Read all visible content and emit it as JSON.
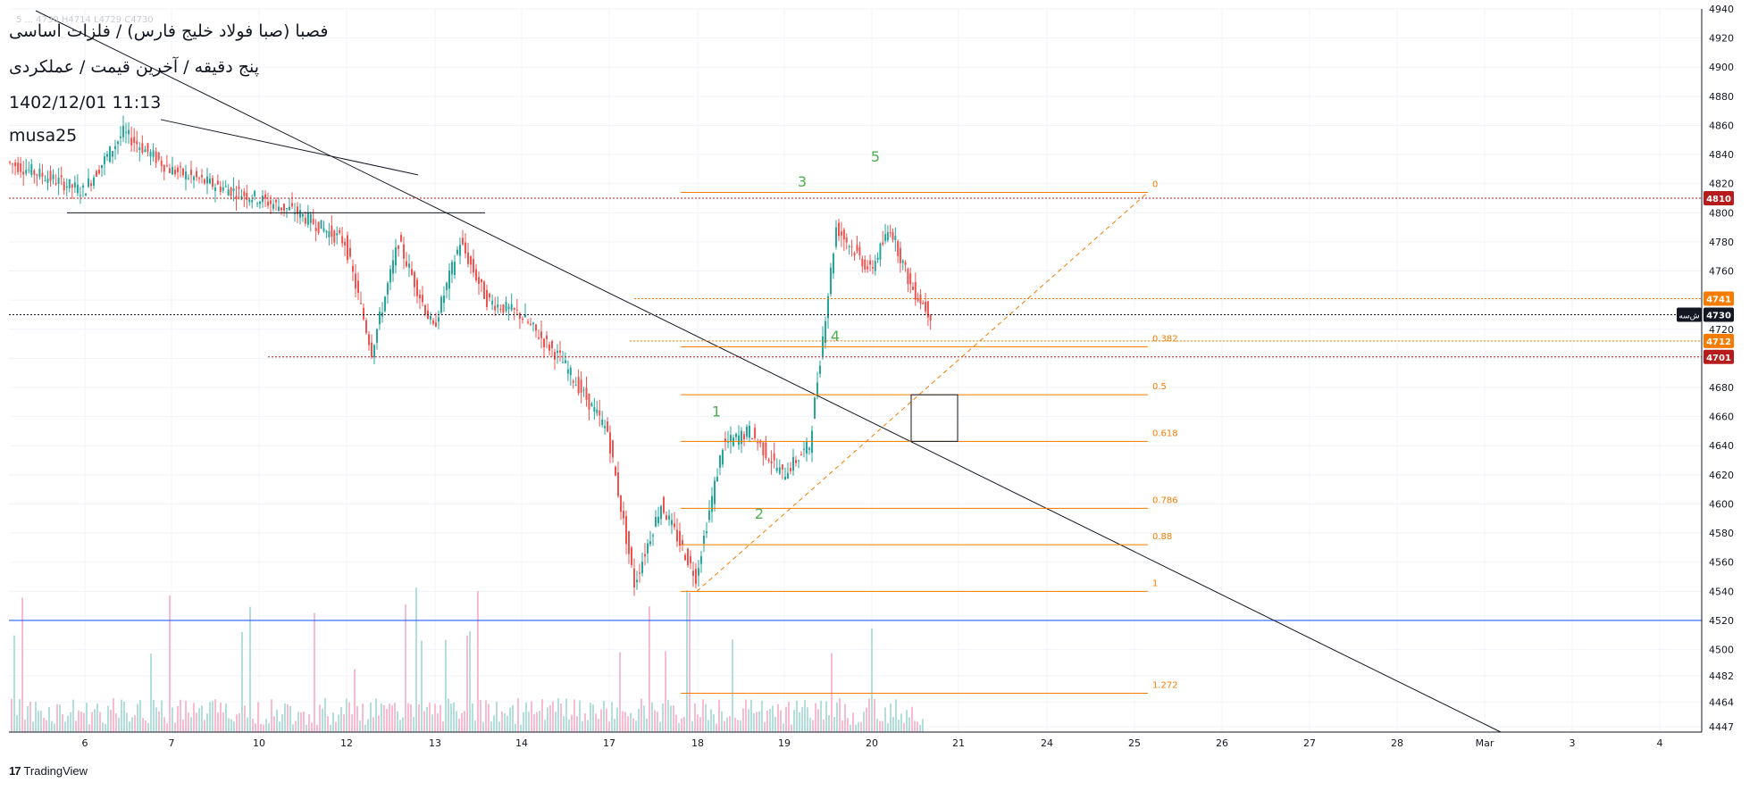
{
  "header": {
    "title": "فصبا (صبا فولاد خلیج فارس) / فلزات اساسی",
    "subtitle": "پنج دقیقه / آخرین قیمت / عملکردی",
    "datetime": "1402/12/01 11:13",
    "author": "musa25",
    "faint_line": "5 ... 4730 H4714 L4729 C4730"
  },
  "brand": {
    "logo": "17",
    "name": "TradingView"
  },
  "colors": {
    "up": "#26a69a",
    "down": "#ef5350",
    "fib": "#f57c00",
    "wave": "#4caf50",
    "trend": "#131722",
    "support": "#2962ff",
    "grid": "#f0f3fa",
    "axis": "#131722"
  },
  "chart_data": {
    "type": "candlestick",
    "timeframe": "5m",
    "ylim": [
      4447,
      4940
    ],
    "y_ticks": [
      4940,
      4920,
      4900,
      4880,
      4860,
      4840,
      4820,
      4800,
      4780,
      4760,
      4740,
      4720,
      4700,
      4680,
      4660,
      4640,
      4620,
      4600,
      4580,
      4560,
      4540,
      4520,
      4500,
      4482,
      4464,
      4447
    ],
    "x_ticks": [
      "6",
      "7",
      "10",
      "12",
      "13",
      "14",
      "17",
      "18",
      "19",
      "20",
      "21",
      "24",
      "25",
      "26",
      "27",
      "28",
      "Mar",
      "3",
      "4"
    ],
    "price_path": [
      {
        "x": "5",
        "y": 4835
      },
      {
        "x": "6",
        "y": 4815
      },
      {
        "x": "6",
        "y": 4855
      },
      {
        "x": "7",
        "y": 4830
      },
      {
        "x": "7",
        "y": 4820
      },
      {
        "x": "10",
        "y": 4810
      },
      {
        "x": "10",
        "y": 4800
      },
      {
        "x": "12",
        "y": 4780
      },
      {
        "x": "12",
        "y": 4705
      },
      {
        "x": "12",
        "y": 4780
      },
      {
        "x": "13",
        "y": 4720
      },
      {
        "x": "13",
        "y": 4780
      },
      {
        "x": "13",
        "y": 4740
      },
      {
        "x": "14",
        "y": 4730
      },
      {
        "x": "14",
        "y": 4700
      },
      {
        "x": "17",
        "y": 4650
      },
      {
        "x": "17",
        "y": 4545
      },
      {
        "x": "17",
        "y": 4600
      },
      {
        "x": "18",
        "y": 4550
      },
      {
        "x": "18",
        "y": 4640
      },
      {
        "x": "18",
        "y": 4650
      },
      {
        "x": "19",
        "y": 4620
      },
      {
        "x": "19",
        "y": 4640
      },
      {
        "x": "19",
        "y": 4790
      },
      {
        "x": "20",
        "y": 4760
      },
      {
        "x": "20",
        "y": 4790
      },
      {
        "x": "20",
        "y": 4750
      },
      {
        "x": "20",
        "y": 4730
      }
    ],
    "price_labels": [
      {
        "value": 4810,
        "label": "4810",
        "color": "#b71c1c"
      },
      {
        "value": 4741,
        "label": "4741",
        "color": "#f57c00"
      },
      {
        "value": 4730,
        "label": "4730",
        "color": "#131722"
      },
      {
        "value": 4712,
        "label": "4712",
        "color": "#f57c00"
      },
      {
        "value": 4701,
        "label": "4701",
        "color": "#b71c1c"
      }
    ],
    "last_price_tag": "ش‌سه",
    "fib_levels": [
      {
        "ratio": "0",
        "price": 4814
      },
      {
        "ratio": "0.382",
        "price": 4708
      },
      {
        "ratio": "0.5",
        "price": 4675
      },
      {
        "ratio": "0.618",
        "price": 4643
      },
      {
        "ratio": "0.786",
        "price": 4597
      },
      {
        "ratio": "0.88",
        "price": 4572
      },
      {
        "ratio": "1",
        "price": 4540
      },
      {
        "ratio": "1.272",
        "price": 4470
      }
    ],
    "wave_labels": [
      {
        "label": "1",
        "price": 4660
      },
      {
        "label": "2",
        "price": 4590
      },
      {
        "label": "3",
        "price": 4818
      },
      {
        "label": "4",
        "price": 4712
      },
      {
        "label": "5",
        "price": 4835
      }
    ],
    "support_line": 4520,
    "volume": "yes (green/red bars at bottom)"
  }
}
